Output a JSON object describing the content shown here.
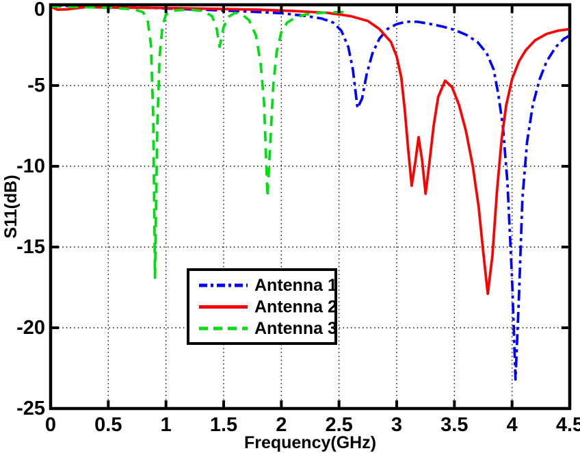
{
  "chart_data": {
    "type": "line",
    "title": "",
    "xlabel": "Frequency(GHz)",
    "ylabel": "S11(dB)",
    "xlim": [
      0,
      4.5
    ],
    "ylim": [
      -25,
      0
    ],
    "xticks": [
      0,
      0.5,
      1,
      1.5,
      2,
      2.5,
      3,
      3.5,
      4,
      4.5
    ],
    "xtick_labels": [
      "0",
      "0.5",
      "1",
      "1.5",
      "2",
      "2.5",
      "3",
      "3.5",
      "4",
      "4.5"
    ],
    "yticks": [
      0,
      -5,
      -10,
      -15,
      -20,
      -25
    ],
    "ytick_labels": [
      "0",
      "-5",
      "-10",
      "-15",
      "-20",
      "-25"
    ],
    "grid": true,
    "grid_style": "dotted",
    "legend_position": "lower-center-left",
    "axis_color": "#000000",
    "background_color": "#ffffff",
    "series": [
      {
        "name": "Antenna 1",
        "color": "#0000ff",
        "style": "dash-dot",
        "points": [
          [
            0,
            -0.05
          ],
          [
            0.3,
            -0.1
          ],
          [
            0.6,
            -0.15
          ],
          [
            0.9,
            -0.2
          ],
          [
            1.2,
            -0.28
          ],
          [
            1.5,
            -0.35
          ],
          [
            1.8,
            -0.45
          ],
          [
            2.0,
            -0.52
          ],
          [
            2.2,
            -0.68
          ],
          [
            2.35,
            -0.85
          ],
          [
            2.45,
            -1.1
          ],
          [
            2.52,
            -1.6
          ],
          [
            2.58,
            -2.6
          ],
          [
            2.62,
            -4.0
          ],
          [
            2.66,
            -6.4
          ],
          [
            2.7,
            -5.8
          ],
          [
            2.74,
            -4.3
          ],
          [
            2.79,
            -3.0
          ],
          [
            2.85,
            -2.1
          ],
          [
            2.92,
            -1.5
          ],
          [
            3.0,
            -1.2
          ],
          [
            3.08,
            -1.05
          ],
          [
            3.18,
            -1.05
          ],
          [
            3.3,
            -1.2
          ],
          [
            3.4,
            -1.35
          ],
          [
            3.5,
            -1.55
          ],
          [
            3.6,
            -1.85
          ],
          [
            3.7,
            -2.3
          ],
          [
            3.78,
            -3.0
          ],
          [
            3.84,
            -4.0
          ],
          [
            3.88,
            -5.5
          ],
          [
            3.92,
            -7.5
          ],
          [
            3.96,
            -11.0
          ],
          [
            4.0,
            -17.0
          ],
          [
            4.03,
            -23.2
          ],
          [
            4.06,
            -18.0
          ],
          [
            4.09,
            -12.0
          ],
          [
            4.13,
            -8.5
          ],
          [
            4.18,
            -6.2
          ],
          [
            4.24,
            -4.6
          ],
          [
            4.3,
            -3.5
          ],
          [
            4.38,
            -2.6
          ],
          [
            4.45,
            -2.1
          ],
          [
            4.5,
            -1.9
          ]
        ]
      },
      {
        "name": "Antenna 2",
        "color": "#ff0000",
        "style": "solid",
        "points": [
          [
            0,
            -0.12
          ],
          [
            0.06,
            -0.3
          ],
          [
            0.15,
            -0.28
          ],
          [
            0.3,
            -0.15
          ],
          [
            0.6,
            -0.18
          ],
          [
            1.0,
            -0.2
          ],
          [
            1.4,
            -0.25
          ],
          [
            1.8,
            -0.3
          ],
          [
            2.1,
            -0.38
          ],
          [
            2.4,
            -0.5
          ],
          [
            2.6,
            -0.7
          ],
          [
            2.75,
            -1.0
          ],
          [
            2.85,
            -1.5
          ],
          [
            2.95,
            -2.3
          ],
          [
            3.0,
            -3.2
          ],
          [
            3.04,
            -4.5
          ],
          [
            3.07,
            -6.5
          ],
          [
            3.1,
            -9.0
          ],
          [
            3.13,
            -11.2
          ],
          [
            3.16,
            -9.8
          ],
          [
            3.19,
            -8.2
          ],
          [
            3.22,
            -9.6
          ],
          [
            3.25,
            -11.7
          ],
          [
            3.28,
            -10.0
          ],
          [
            3.32,
            -7.5
          ],
          [
            3.36,
            -5.7
          ],
          [
            3.42,
            -4.7
          ],
          [
            3.48,
            -5.1
          ],
          [
            3.54,
            -6.2
          ],
          [
            3.6,
            -7.8
          ],
          [
            3.66,
            -10.0
          ],
          [
            3.71,
            -12.5
          ],
          [
            3.75,
            -15.3
          ],
          [
            3.79,
            -17.9
          ],
          [
            3.83,
            -15.5
          ],
          [
            3.87,
            -11.5
          ],
          [
            3.91,
            -8.3
          ],
          [
            3.95,
            -6.2
          ],
          [
            4.0,
            -4.6
          ],
          [
            4.06,
            -3.5
          ],
          [
            4.12,
            -2.8
          ],
          [
            4.2,
            -2.2
          ],
          [
            4.3,
            -1.8
          ],
          [
            4.4,
            -1.6
          ],
          [
            4.5,
            -1.5
          ]
        ]
      },
      {
        "name": "Antenna 3",
        "color": "#00dd11",
        "style": "dashed",
        "points": [
          [
            0,
            -0.1
          ],
          [
            0.3,
            -0.15
          ],
          [
            0.55,
            -0.2
          ],
          [
            0.72,
            -0.28
          ],
          [
            0.8,
            -0.45
          ],
          [
            0.84,
            -0.9
          ],
          [
            0.87,
            -2.5
          ],
          [
            0.89,
            -7.0
          ],
          [
            0.905,
            -16.9
          ],
          [
            0.925,
            -7.5
          ],
          [
            0.945,
            -3.2
          ],
          [
            0.97,
            -1.3
          ],
          [
            1.0,
            -0.6
          ],
          [
            1.08,
            -0.35
          ],
          [
            1.2,
            -0.3
          ],
          [
            1.32,
            -0.38
          ],
          [
            1.4,
            -0.7
          ],
          [
            1.44,
            -1.5
          ],
          [
            1.465,
            -2.6
          ],
          [
            1.5,
            -1.4
          ],
          [
            1.54,
            -0.75
          ],
          [
            1.6,
            -0.5
          ],
          [
            1.66,
            -0.6
          ],
          [
            1.72,
            -0.95
          ],
          [
            1.78,
            -1.9
          ],
          [
            1.82,
            -3.6
          ],
          [
            1.85,
            -6.0
          ],
          [
            1.88,
            -11.9
          ],
          [
            1.905,
            -8.5
          ],
          [
            1.93,
            -5.0
          ],
          [
            1.96,
            -2.9
          ],
          [
            2.0,
            -1.7
          ],
          [
            2.05,
            -1.1
          ],
          [
            2.12,
            -0.8
          ],
          [
            2.2,
            -0.62
          ],
          [
            2.3,
            -0.52
          ],
          [
            2.4,
            -0.48
          ],
          [
            2.5,
            -0.45
          ],
          [
            2.55,
            -0.45
          ]
        ]
      }
    ],
    "legend_labels": [
      "Antenna 1",
      "Antenna 2",
      "Antenna 3"
    ]
  }
}
